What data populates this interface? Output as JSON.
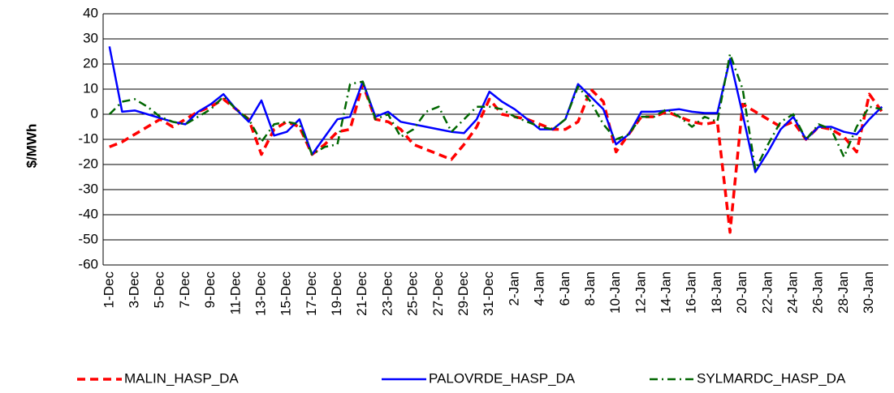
{
  "chart_data": {
    "type": "line",
    "y_label": "$/MWh",
    "categories": [
      "1-Dec",
      null,
      "3-Dec",
      null,
      "5-Dec",
      null,
      "7-Dec",
      null,
      "9-Dec",
      null,
      "11-Dec",
      null,
      "13-Dec",
      null,
      "15-Dec",
      null,
      "17-Dec",
      null,
      "19-Dec",
      null,
      "21-Dec",
      null,
      "23-Dec",
      null,
      "25-Dec",
      null,
      "27-Dec",
      null,
      "29-Dec",
      null,
      "31-Dec",
      null,
      "2-Jan",
      null,
      "4-Jan",
      null,
      "6-Jan",
      null,
      "8-Jan",
      null,
      "10-Jan",
      null,
      "12-Jan",
      null,
      "14-Jan",
      null,
      "16-Jan",
      null,
      "18-Jan",
      null,
      "20-Jan",
      null,
      "22-Jan",
      null,
      "24-Jan",
      null,
      "26-Jan",
      null,
      "28-Jan",
      null,
      "30-Jan",
      null
    ],
    "series": [
      {
        "name": "MALIN_HASP_DA",
        "color": "#ff0000",
        "dash": "10,6",
        "values": [
          -13,
          -11,
          -8,
          -5,
          -2,
          -5,
          -2,
          1,
          3,
          6,
          2,
          -2,
          -16,
          -6,
          -3,
          -5,
          -16,
          -12,
          -7,
          -6,
          12,
          -2,
          -3,
          -6,
          -12,
          -14,
          -16,
          -18,
          -12,
          -5,
          6,
          0,
          -1,
          -2,
          -4,
          -6,
          -6,
          -3,
          10,
          5,
          -15,
          -8,
          -1,
          -1,
          1,
          -1,
          -3,
          -4,
          -3,
          -47,
          4,
          1,
          -2,
          -5,
          -3,
          -10,
          -5,
          -6,
          -9,
          -15,
          8,
          1
        ]
      },
      {
        "name": "PALOVRDE_HASP_DA",
        "color": "#0000ff",
        "dash": "",
        "values": [
          27,
          1,
          1.5,
          0,
          -1.5,
          -3,
          -4,
          1,
          4,
          8,
          2,
          -3,
          5.5,
          -8.5,
          -7,
          -2,
          -16,
          -9,
          -2,
          -1,
          13,
          -1,
          1,
          -3,
          -4,
          -5,
          -6,
          -7,
          -7.5,
          -2,
          9,
          5,
          2,
          -2,
          -6,
          -6,
          -2,
          12,
          7,
          2,
          -12,
          -8,
          1,
          1,
          1.5,
          2,
          1,
          0.5,
          0.5,
          22,
          0,
          -23,
          -15,
          -6,
          -1,
          -10,
          -5,
          -5,
          -7,
          -8,
          -2,
          3
        ]
      },
      {
        "name": "SYLMARDC_HASP_DA",
        "color": "#006600",
        "dash": "10,5,2,5",
        "values": [
          0,
          5,
          6,
          3,
          -1,
          -3,
          -4,
          -1,
          2,
          7,
          2,
          -2,
          -11,
          -4,
          -3,
          -4,
          -16,
          -13,
          -12,
          12,
          13,
          -2,
          0,
          -9,
          -6,
          1,
          3,
          -7,
          -2,
          3,
          3,
          2,
          -1,
          -3,
          -5,
          -6,
          -2,
          11,
          5,
          -4,
          -10,
          -8,
          -1,
          -1,
          2,
          -1,
          -5,
          -1,
          -3,
          24,
          10,
          -22,
          -12,
          -3,
          0,
          -10,
          -4,
          -6,
          -17,
          -5,
          3,
          2
        ]
      }
    ],
    "ylim": [
      -60,
      40
    ],
    "yticks": [
      -60,
      -50,
      -40,
      -30,
      -20,
      -10,
      0,
      10,
      20,
      30,
      40
    ],
    "grid": true,
    "legend": "bottom"
  }
}
